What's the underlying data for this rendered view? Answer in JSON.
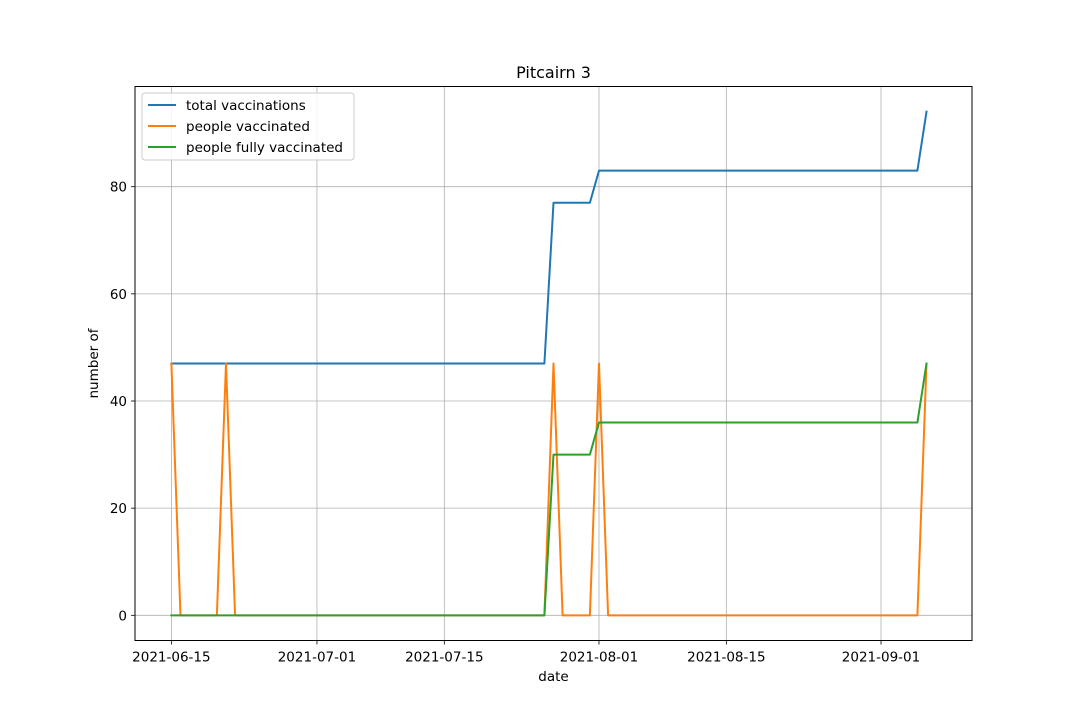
{
  "chart_data": {
    "type": "line",
    "title": "Pitcairn 3",
    "xlabel": "date",
    "ylabel": "number of",
    "x_ticks": [
      "2021-06-15",
      "2021-07-01",
      "2021-07-15",
      "2021-08-01",
      "2021-08-15",
      "2021-09-01"
    ],
    "y_ticks": [
      0,
      20,
      40,
      60,
      80
    ],
    "xlim": [
      "2021-06-11",
      "2021-09-11"
    ],
    "ylim": [
      -4.7,
      98.7
    ],
    "grid": true,
    "legend_position": "upper-left",
    "series": [
      {
        "name": "total vaccinations",
        "color": "#1f77b4",
        "points": [
          [
            "2021-06-15",
            47
          ],
          [
            "2021-07-26",
            47
          ],
          [
            "2021-07-27",
            77
          ],
          [
            "2021-07-31",
            77
          ],
          [
            "2021-08-01",
            83
          ],
          [
            "2021-09-05",
            83
          ],
          [
            "2021-09-06",
            94
          ]
        ]
      },
      {
        "name": "people vaccinated",
        "color": "#ff7f0e",
        "points": [
          [
            "2021-06-15",
            47
          ],
          [
            "2021-06-16",
            0
          ],
          [
            "2021-06-20",
            0
          ],
          [
            "2021-06-21",
            47
          ],
          [
            "2021-06-22",
            0
          ],
          [
            "2021-07-26",
            0
          ],
          [
            "2021-07-27",
            47
          ],
          [
            "2021-07-28",
            0
          ],
          [
            "2021-07-31",
            0
          ],
          [
            "2021-08-01",
            47
          ],
          [
            "2021-08-02",
            0
          ],
          [
            "2021-09-05",
            0
          ],
          [
            "2021-09-06",
            47
          ]
        ]
      },
      {
        "name": "people fully vaccinated",
        "color": "#2ca02c",
        "points": [
          [
            "2021-06-15",
            0
          ],
          [
            "2021-07-26",
            0
          ],
          [
            "2021-07-27",
            30
          ],
          [
            "2021-07-31",
            30
          ],
          [
            "2021-08-01",
            36
          ],
          [
            "2021-09-05",
            36
          ],
          [
            "2021-09-06",
            47
          ]
        ]
      }
    ]
  }
}
